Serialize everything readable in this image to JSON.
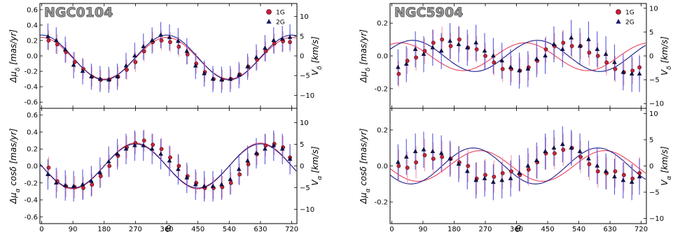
{
  "figure": {
    "x_ticks": [
      0,
      90,
      180,
      270,
      360,
      450,
      540,
      630,
      720
    ],
    "x_label": "θ"
  },
  "legend": [
    {
      "label": "1G",
      "color": "#dc143c",
      "marker": "circle"
    },
    {
      "label": "2G",
      "color": "#191970",
      "marker": "triangle"
    }
  ],
  "colors": {
    "pop1_points": "#c8243c",
    "pop1_line": "#e8405c",
    "pop1_err": "#ee8aa0",
    "pop2_points": "#0f0f5a",
    "pop2_line": "#1a1a8c",
    "pop2_err": "#3b3bd8"
  },
  "chart_data": [
    {
      "type": "scatter",
      "cluster": "NGC0104",
      "component": "delta",
      "title": "NGC0104",
      "ylabel": "Δμ_δ [mas/yr]",
      "ylabel_right": "V_δ [km/s]",
      "ylim": [
        -0.68,
        0.68
      ],
      "yticks": [
        -0.6,
        -0.4,
        -0.2,
        0.0,
        0.2,
        0.4,
        0.6
      ],
      "ylim_right": [
        -13.3,
        13.3
      ],
      "yticks_right": [
        -10,
        -5,
        0,
        5,
        10
      ],
      "xlim": [
        -5,
        735
      ],
      "series": [
        {
          "name": "1G",
          "amplitude": 0.27,
          "phase_deg": 0,
          "offset": -0.03,
          "err": 0.13,
          "x": [
            20,
            45,
            70,
            95,
            120,
            145,
            170,
            195,
            220,
            245,
            270,
            295,
            320,
            345,
            370,
            395,
            420,
            445,
            470,
            495,
            520,
            545,
            570,
            595,
            620,
            645,
            670,
            695,
            715
          ],
          "y": [
            0.2,
            0.15,
            0.05,
            -0.08,
            -0.17,
            -0.27,
            -0.31,
            -0.31,
            -0.27,
            -0.18,
            -0.08,
            0.06,
            0.18,
            0.2,
            0.18,
            0.12,
            0.02,
            -0.1,
            -0.21,
            -0.3,
            -0.31,
            -0.3,
            -0.24,
            -0.14,
            -0.05,
            0.06,
            0.16,
            0.19,
            0.18
          ]
        },
        {
          "name": "2G",
          "amplitude": 0.29,
          "phase_deg": 0,
          "offset": -0.02,
          "err": 0.17,
          "x": [
            18,
            42,
            68,
            92,
            118,
            143,
            168,
            193,
            218,
            243,
            268,
            293,
            318,
            343,
            368,
            393,
            418,
            443,
            468,
            493,
            518,
            543,
            568,
            593,
            618,
            643,
            668,
            693,
            715
          ],
          "y": [
            0.25,
            0.2,
            0.08,
            -0.12,
            -0.2,
            -0.27,
            -0.3,
            -0.31,
            -0.27,
            -0.13,
            0.0,
            0.12,
            0.2,
            0.27,
            0.24,
            0.19,
            0.06,
            -0.13,
            -0.23,
            -0.3,
            -0.31,
            -0.3,
            -0.25,
            -0.14,
            -0.02,
            0.1,
            0.2,
            0.22,
            0.24
          ]
        }
      ]
    },
    {
      "type": "scatter",
      "cluster": "NGC0104",
      "component": "alpha",
      "title": "",
      "ylabel": "Δμ_α cosδ [mas/yr]",
      "ylabel_right": "V_α [km/s]",
      "ylim": [
        -0.68,
        0.68
      ],
      "yticks": [
        -0.6,
        -0.4,
        -0.2,
        0.0,
        0.2,
        0.4,
        0.6
      ],
      "ylim_right": [
        -13.3,
        13.3
      ],
      "yticks_right": [
        -10,
        -5,
        0,
        5,
        10
      ],
      "xlim": [
        -5,
        735
      ],
      "series": [
        {
          "name": "1G",
          "amplitude": 0.27,
          "phase_deg": 270,
          "offset": 0.0,
          "err": 0.13,
          "x": [
            20,
            45,
            70,
            95,
            120,
            145,
            170,
            195,
            220,
            245,
            270,
            295,
            320,
            345,
            370,
            395,
            420,
            445,
            470,
            495,
            520,
            545,
            570,
            595,
            620,
            645,
            670,
            695,
            715
          ],
          "y": [
            -0.02,
            -0.18,
            -0.24,
            -0.25,
            -0.26,
            -0.22,
            -0.12,
            0.0,
            0.12,
            0.22,
            0.27,
            0.3,
            0.25,
            0.2,
            0.1,
            0.0,
            -0.12,
            -0.2,
            -0.26,
            -0.26,
            -0.25,
            -0.2,
            -0.1,
            0.02,
            0.14,
            0.24,
            0.26,
            0.22,
            0.1
          ]
        },
        {
          "name": "2G",
          "amplitude": 0.26,
          "phase_deg": 270,
          "offset": 0.0,
          "err": 0.18,
          "x": [
            18,
            42,
            68,
            92,
            118,
            143,
            168,
            193,
            218,
            243,
            268,
            293,
            318,
            343,
            368,
            393,
            418,
            443,
            468,
            493,
            518,
            543,
            568,
            593,
            618,
            643,
            668,
            693,
            715
          ],
          "y": [
            -0.1,
            -0.2,
            -0.23,
            -0.24,
            -0.22,
            -0.18,
            -0.08,
            0.05,
            0.14,
            0.2,
            0.24,
            0.24,
            0.2,
            0.14,
            0.06,
            -0.04,
            -0.14,
            -0.22,
            -0.24,
            -0.24,
            -0.22,
            -0.16,
            -0.04,
            0.06,
            0.15,
            0.2,
            0.24,
            0.2,
            0.08
          ]
        }
      ]
    },
    {
      "type": "scatter",
      "cluster": "NGC5904",
      "component": "delta",
      "title": "NGC5904",
      "ylabel": "Δμ_δ [mas/yr]",
      "ylabel_right": "V_δ [km/s]",
      "ylim": [
        -0.32,
        0.32
      ],
      "yticks": [
        -0.2,
        0.0,
        0.2
      ],
      "ylim_right": [
        -11.0,
        11.0
      ],
      "yticks_right": [
        -10,
        -5,
        0,
        5,
        10
      ],
      "xlim": [
        -5,
        735
      ],
      "series": [
        {
          "name": "1G",
          "amplitude": 0.085,
          "phase_deg": 25,
          "offset": -0.005,
          "err": 0.08,
          "x": [
            20,
            45,
            70,
            95,
            120,
            145,
            170,
            195,
            220,
            245,
            270,
            295,
            320,
            345,
            370,
            395,
            420,
            445,
            470,
            495,
            520,
            545,
            570,
            595,
            620,
            645,
            670,
            695,
            715
          ],
          "y": [
            -0.11,
            -0.03,
            -0.01,
            0.03,
            0.08,
            0.1,
            0.06,
            0.1,
            0.05,
            0.04,
            0.0,
            -0.04,
            -0.08,
            -0.08,
            -0.09,
            -0.07,
            -0.03,
            0.04,
            0.06,
            0.08,
            0.06,
            0.06,
            0.02,
            0.0,
            -0.04,
            -0.08,
            -0.1,
            -0.09,
            -0.07
          ]
        },
        {
          "name": "2G",
          "amplitude": 0.095,
          "phase_deg": 60,
          "offset": 0.0,
          "err": 0.11,
          "x": [
            18,
            42,
            68,
            92,
            118,
            143,
            168,
            193,
            218,
            243,
            268,
            293,
            318,
            343,
            368,
            393,
            418,
            443,
            468,
            493,
            518,
            543,
            568,
            593,
            618,
            643,
            668,
            693,
            715
          ],
          "y": [
            -0.07,
            -0.05,
            0.04,
            0.01,
            0.05,
            0.03,
            0.09,
            0.07,
            0.05,
            0.08,
            0.03,
            0.0,
            -0.03,
            -0.07,
            -0.09,
            -0.08,
            -0.02,
            0.0,
            0.07,
            0.04,
            0.11,
            0.06,
            0.1,
            0.04,
            0.01,
            -0.04,
            -0.1,
            -0.11,
            -0.11
          ]
        }
      ]
    },
    {
      "type": "scatter",
      "cluster": "NGC5904",
      "component": "alpha",
      "title": "",
      "ylabel": "Δμ_α cosδ [mas/yr]",
      "ylabel_right": "V_α [km/s]",
      "ylim": [
        -0.32,
        0.32
      ],
      "yticks": [
        -0.2,
        0.0,
        0.2
      ],
      "ylim_right": [
        -11.0,
        11.0
      ],
      "yticks_right": [
        -10,
        -5,
        0,
        5,
        10
      ],
      "xlim": [
        -5,
        735
      ],
      "series": [
        {
          "name": "1G",
          "amplitude": 0.085,
          "phase_deg": 255,
          "offset": 0.0,
          "err": 0.09,
          "x": [
            20,
            45,
            70,
            95,
            120,
            145,
            170,
            195,
            220,
            245,
            270,
            295,
            320,
            345,
            370,
            395,
            420,
            445,
            470,
            495,
            520,
            545,
            570,
            595,
            620,
            645,
            670,
            695,
            715
          ],
          "y": [
            0.0,
            -0.01,
            0.02,
            0.06,
            0.04,
            0.05,
            0.04,
            0.02,
            0.0,
            -0.07,
            -0.05,
            -0.06,
            -0.04,
            -0.03,
            -0.05,
            -0.02,
            0.02,
            0.07,
            0.07,
            0.09,
            0.1,
            0.05,
            0.01,
            -0.03,
            -0.04,
            -0.03,
            -0.05,
            -0.07,
            -0.04
          ]
        },
        {
          "name": "2G",
          "amplitude": 0.1,
          "phase_deg": 235,
          "offset": 0.0,
          "err": 0.1,
          "x": [
            18,
            42,
            68,
            92,
            118,
            143,
            168,
            193,
            218,
            243,
            268,
            293,
            318,
            343,
            368,
            393,
            418,
            443,
            468,
            493,
            518,
            543,
            568,
            593,
            618,
            643,
            668,
            693,
            715
          ],
          "y": [
            0.02,
            0.05,
            0.08,
            0.09,
            0.08,
            0.07,
            0.04,
            0.01,
            -0.03,
            -0.08,
            -0.07,
            -0.09,
            -0.08,
            -0.07,
            -0.04,
            0.0,
            0.03,
            0.08,
            0.1,
            0.12,
            0.1,
            0.08,
            0.04,
            0.0,
            -0.03,
            -0.06,
            -0.08,
            -0.09,
            -0.06
          ]
        }
      ]
    }
  ]
}
